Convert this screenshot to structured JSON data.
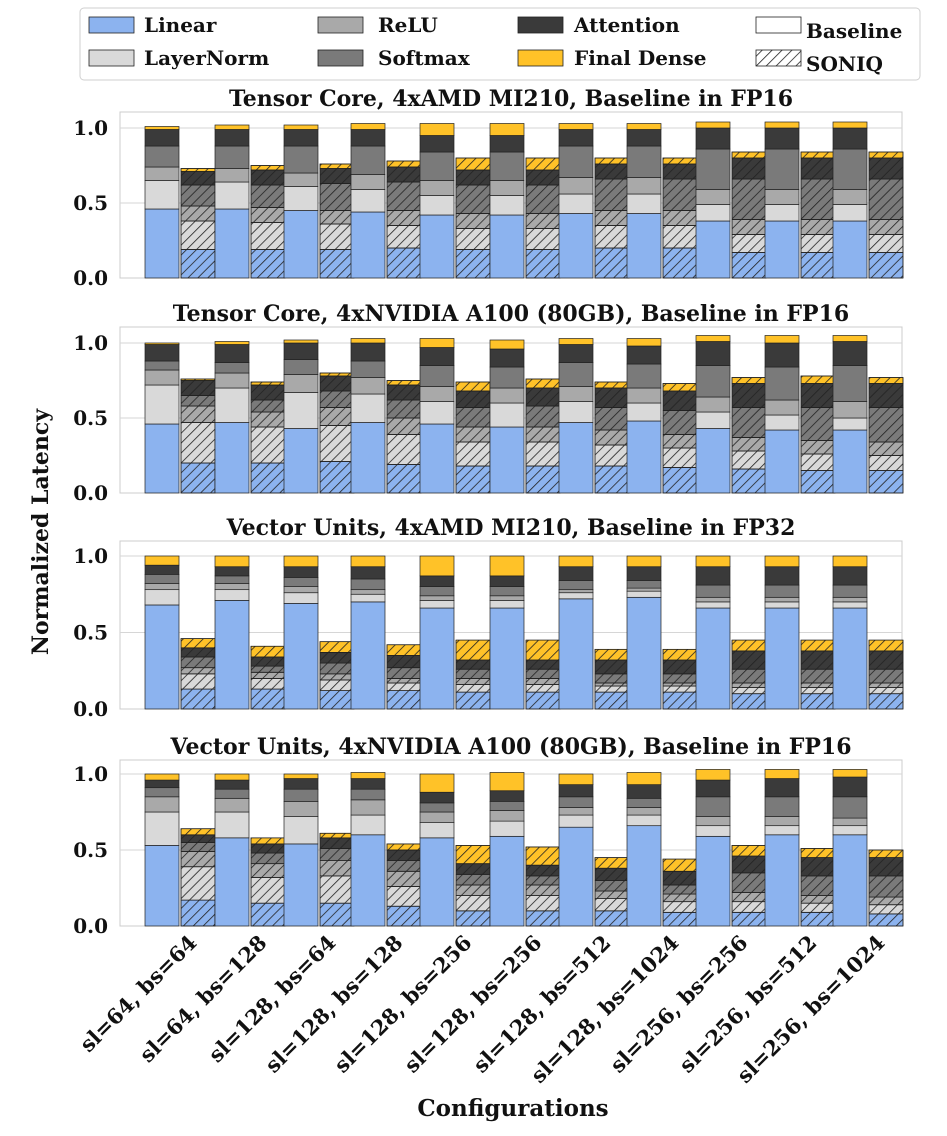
{
  "legend": {
    "entries": [
      "Linear",
      "LayerNorm",
      "ReLU",
      "Softmax",
      "Attention",
      "Final Dense",
      "Baseline",
      "SONIQ"
    ]
  },
  "colors": {
    "Linear": "#8cb3ef",
    "LayerNorm": "#d9d9d9",
    "ReLU": "#a9a9a9",
    "Softmax": "#7a7a7a",
    "Attention": "#3a3a3a",
    "Final Dense": "#ffc228",
    "grid": "#d6d6d6",
    "axis": "#333333"
  },
  "chart_data": {
    "type": "bar",
    "stacked": true,
    "xlabel": "Configurations",
    "ylabel": "Normalized Latency",
    "categories": [
      "sl=64, bs=64",
      "sl=64, bs=128",
      "sl=128, bs=64",
      "sl=128, bs=128",
      "sl=128, bs=256",
      "sl=128, bs=256",
      "sl=128, bs=512",
      "sl=128, bs=1024",
      "sl=256, bs=256",
      "sl=256, bs=512",
      "sl=256, bs=1024"
    ],
    "components": [
      "Linear",
      "LayerNorm",
      "ReLU",
      "Softmax",
      "Attention",
      "Final Dense"
    ],
    "variants": [
      "Baseline",
      "SONIQ"
    ],
    "ylim": [
      0,
      1.1
    ],
    "yticks": [
      "0.0",
      "0.5",
      "1.0"
    ],
    "grid": true,
    "legend_position": "top",
    "panels": [
      {
        "title": "Tensor Core, 4xAMD MI210, Baseline in FP16",
        "baseline": [
          [
            0.46,
            0.19,
            0.09,
            0.14,
            0.11,
            0.02
          ],
          [
            0.46,
            0.18,
            0.09,
            0.15,
            0.11,
            0.03
          ],
          [
            0.45,
            0.16,
            0.09,
            0.18,
            0.11,
            0.03
          ],
          [
            0.44,
            0.15,
            0.1,
            0.19,
            0.11,
            0.04
          ],
          [
            0.42,
            0.13,
            0.1,
            0.19,
            0.11,
            0.08
          ],
          [
            0.42,
            0.13,
            0.1,
            0.19,
            0.11,
            0.08
          ],
          [
            0.43,
            0.13,
            0.11,
            0.21,
            0.11,
            0.04
          ],
          [
            0.43,
            0.13,
            0.11,
            0.21,
            0.11,
            0.04
          ],
          [
            0.38,
            0.11,
            0.1,
            0.27,
            0.14,
            0.04
          ],
          [
            0.38,
            0.11,
            0.1,
            0.27,
            0.14,
            0.04
          ],
          [
            0.38,
            0.11,
            0.1,
            0.27,
            0.14,
            0.04
          ]
        ],
        "soniq": [
          [
            0.19,
            0.19,
            0.1,
            0.14,
            0.09,
            0.02
          ],
          [
            0.19,
            0.18,
            0.1,
            0.15,
            0.1,
            0.03
          ],
          [
            0.19,
            0.17,
            0.09,
            0.18,
            0.1,
            0.03
          ],
          [
            0.2,
            0.15,
            0.1,
            0.19,
            0.1,
            0.04
          ],
          [
            0.19,
            0.14,
            0.1,
            0.19,
            0.1,
            0.08
          ],
          [
            0.19,
            0.14,
            0.1,
            0.19,
            0.1,
            0.08
          ],
          [
            0.2,
            0.15,
            0.1,
            0.21,
            0.1,
            0.04
          ],
          [
            0.2,
            0.15,
            0.1,
            0.21,
            0.1,
            0.04
          ],
          [
            0.17,
            0.12,
            0.1,
            0.27,
            0.14,
            0.04
          ],
          [
            0.17,
            0.12,
            0.1,
            0.27,
            0.14,
            0.04
          ],
          [
            0.17,
            0.12,
            0.1,
            0.27,
            0.14,
            0.04
          ]
        ]
      },
      {
        "title": "Tensor Core, 4xNVIDIA A100 (80GB), Baseline in FP16",
        "baseline": [
          [
            0.46,
            0.26,
            0.1,
            0.06,
            0.11,
            0.01
          ],
          [
            0.47,
            0.23,
            0.1,
            0.07,
            0.12,
            0.02
          ],
          [
            0.43,
            0.24,
            0.12,
            0.1,
            0.11,
            0.02
          ],
          [
            0.47,
            0.19,
            0.11,
            0.11,
            0.12,
            0.03
          ],
          [
            0.46,
            0.15,
            0.1,
            0.14,
            0.12,
            0.06
          ],
          [
            0.44,
            0.16,
            0.1,
            0.14,
            0.12,
            0.06
          ],
          [
            0.47,
            0.14,
            0.1,
            0.16,
            0.12,
            0.04
          ],
          [
            0.48,
            0.12,
            0.1,
            0.16,
            0.12,
            0.05
          ],
          [
            0.43,
            0.11,
            0.1,
            0.21,
            0.16,
            0.04
          ],
          [
            0.42,
            0.1,
            0.1,
            0.22,
            0.16,
            0.05
          ],
          [
            0.42,
            0.08,
            0.11,
            0.24,
            0.16,
            0.04
          ]
        ],
        "soniq": [
          [
            0.2,
            0.27,
            0.11,
            0.07,
            0.1,
            0.01
          ],
          [
            0.2,
            0.24,
            0.1,
            0.08,
            0.1,
            0.02
          ],
          [
            0.21,
            0.24,
            0.12,
            0.11,
            0.1,
            0.02
          ],
          [
            0.19,
            0.2,
            0.11,
            0.12,
            0.1,
            0.03
          ],
          [
            0.18,
            0.16,
            0.1,
            0.13,
            0.11,
            0.06
          ],
          [
            0.18,
            0.16,
            0.1,
            0.14,
            0.12,
            0.06
          ],
          [
            0.18,
            0.14,
            0.1,
            0.15,
            0.13,
            0.04
          ],
          [
            0.17,
            0.13,
            0.09,
            0.16,
            0.13,
            0.05
          ],
          [
            0.16,
            0.12,
            0.09,
            0.2,
            0.16,
            0.04
          ],
          [
            0.15,
            0.11,
            0.09,
            0.22,
            0.16,
            0.05
          ],
          [
            0.15,
            0.1,
            0.09,
            0.23,
            0.16,
            0.04
          ]
        ]
      },
      {
        "title": "Vector Units, 4xAMD MI210, Baseline in FP32",
        "baseline": [
          [
            0.68,
            0.1,
            0.04,
            0.06,
            0.06,
            0.06
          ],
          [
            0.71,
            0.07,
            0.04,
            0.05,
            0.06,
            0.07
          ],
          [
            0.69,
            0.07,
            0.04,
            0.06,
            0.07,
            0.07
          ],
          [
            0.7,
            0.05,
            0.03,
            0.07,
            0.08,
            0.07
          ],
          [
            0.66,
            0.05,
            0.03,
            0.06,
            0.07,
            0.13
          ],
          [
            0.66,
            0.05,
            0.03,
            0.06,
            0.07,
            0.13
          ],
          [
            0.72,
            0.04,
            0.02,
            0.06,
            0.09,
            0.07
          ],
          [
            0.73,
            0.04,
            0.02,
            0.05,
            0.09,
            0.07
          ],
          [
            0.66,
            0.04,
            0.03,
            0.08,
            0.12,
            0.07
          ],
          [
            0.66,
            0.04,
            0.03,
            0.08,
            0.12,
            0.07
          ],
          [
            0.66,
            0.04,
            0.03,
            0.08,
            0.12,
            0.07
          ]
        ],
        "soniq": [
          [
            0.13,
            0.1,
            0.04,
            0.07,
            0.06,
            0.06
          ],
          [
            0.13,
            0.07,
            0.04,
            0.04,
            0.06,
            0.07
          ],
          [
            0.12,
            0.07,
            0.04,
            0.07,
            0.07,
            0.07
          ],
          [
            0.12,
            0.05,
            0.03,
            0.07,
            0.08,
            0.07
          ],
          [
            0.11,
            0.05,
            0.04,
            0.06,
            0.06,
            0.13
          ],
          [
            0.11,
            0.05,
            0.04,
            0.06,
            0.06,
            0.13
          ],
          [
            0.11,
            0.04,
            0.02,
            0.06,
            0.09,
            0.07
          ],
          [
            0.11,
            0.04,
            0.02,
            0.06,
            0.09,
            0.07
          ],
          [
            0.1,
            0.04,
            0.03,
            0.09,
            0.12,
            0.07
          ],
          [
            0.1,
            0.04,
            0.03,
            0.09,
            0.12,
            0.07
          ],
          [
            0.1,
            0.04,
            0.03,
            0.09,
            0.12,
            0.07
          ]
        ]
      },
      {
        "title": "Vector Units, 4xNVIDIA A100 (80GB), Baseline in FP16",
        "baseline": [
          [
            0.53,
            0.22,
            0.1,
            0.06,
            0.05,
            0.04
          ],
          [
            0.58,
            0.17,
            0.09,
            0.06,
            0.06,
            0.04
          ],
          [
            0.54,
            0.18,
            0.1,
            0.08,
            0.07,
            0.03
          ],
          [
            0.6,
            0.13,
            0.1,
            0.07,
            0.07,
            0.04
          ],
          [
            0.58,
            0.1,
            0.07,
            0.06,
            0.07,
            0.12
          ],
          [
            0.59,
            0.1,
            0.07,
            0.06,
            0.07,
            0.12
          ],
          [
            0.65,
            0.08,
            0.05,
            0.07,
            0.08,
            0.07
          ],
          [
            0.66,
            0.07,
            0.05,
            0.06,
            0.09,
            0.08
          ],
          [
            0.59,
            0.07,
            0.06,
            0.13,
            0.11,
            0.07
          ],
          [
            0.6,
            0.06,
            0.06,
            0.13,
            0.12,
            0.06
          ],
          [
            0.6,
            0.06,
            0.05,
            0.14,
            0.13,
            0.05
          ]
        ],
        "soniq": [
          [
            0.17,
            0.22,
            0.1,
            0.06,
            0.05,
            0.04
          ],
          [
            0.15,
            0.17,
            0.09,
            0.07,
            0.06,
            0.04
          ],
          [
            0.15,
            0.18,
            0.1,
            0.08,
            0.07,
            0.03
          ],
          [
            0.13,
            0.13,
            0.1,
            0.07,
            0.07,
            0.04
          ],
          [
            0.1,
            0.1,
            0.07,
            0.07,
            0.07,
            0.12
          ],
          [
            0.1,
            0.1,
            0.07,
            0.06,
            0.07,
            0.12
          ],
          [
            0.1,
            0.08,
            0.05,
            0.07,
            0.08,
            0.07
          ],
          [
            0.09,
            0.07,
            0.05,
            0.06,
            0.09,
            0.08
          ],
          [
            0.09,
            0.07,
            0.06,
            0.13,
            0.11,
            0.07
          ],
          [
            0.09,
            0.06,
            0.05,
            0.13,
            0.12,
            0.06
          ],
          [
            0.08,
            0.06,
            0.05,
            0.14,
            0.12,
            0.05
          ]
        ]
      }
    ]
  }
}
